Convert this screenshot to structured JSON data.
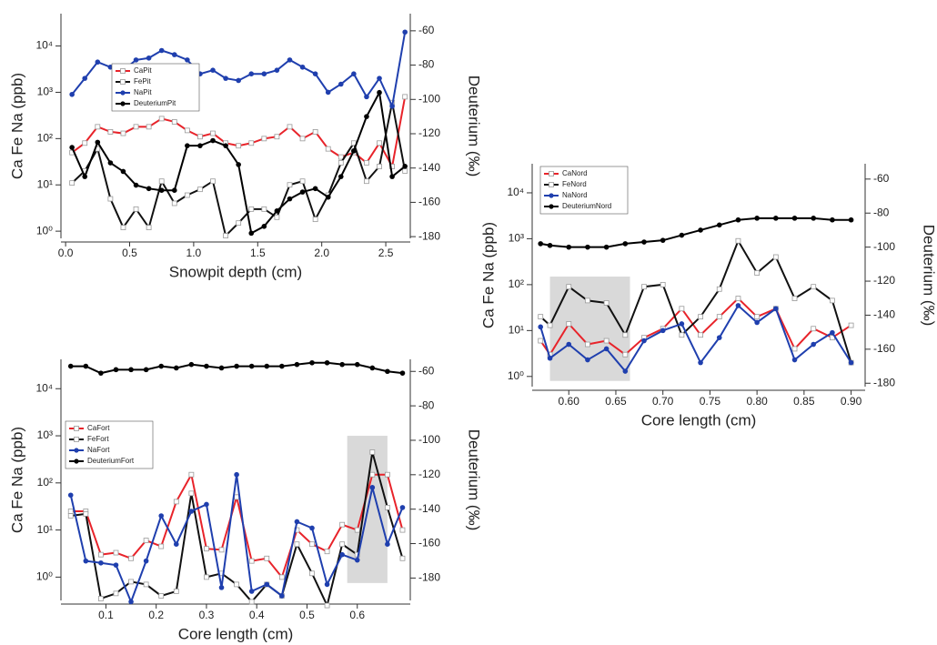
{
  "chart_data": [
    {
      "type": "line",
      "xlabel": "Snowpit depth (cm)",
      "ylabel": "Ca Fe Na (ppb)",
      "y2label": "Deuterium (‰)",
      "yscale": "log",
      "xlim": [
        -0.015,
        2.67
      ],
      "ylim": [
        0.7,
        50000
      ],
      "y2lim": [
        -181,
        -50
      ],
      "xticks": [
        {
          "value": 0,
          "label": "0.0"
        },
        0.5,
        {
          "value": 1,
          "label": "1.0"
        },
        1.5,
        {
          "value": 2,
          "label": "2.0"
        },
        2.5
      ],
      "yticks": [
        {
          "value": 1,
          "label": "10⁰"
        },
        {
          "value": 10,
          "label": "10¹"
        },
        {
          "value": 100,
          "label": "10²"
        },
        {
          "value": 1000,
          "label": "10³"
        },
        {
          "value": 10000,
          "label": "10⁴"
        }
      ],
      "y2ticks": [
        -60,
        -80,
        -100,
        -120,
        -140,
        -160,
        -180
      ],
      "x": [
        0.05,
        0.15,
        0.25,
        0.35,
        0.45,
        0.55,
        0.65,
        0.75,
        0.85,
        0.95,
        1.05,
        1.15,
        1.25,
        1.35,
        1.45,
        1.55,
        1.65,
        1.75,
        1.85,
        1.95,
        2.05,
        2.15,
        2.25,
        2.35,
        2.45,
        2.55,
        2.65
      ],
      "series": [
        {
          "name": "CaPit",
          "color": "#e8232a",
          "marker": "square",
          "values": [
            50,
            80,
            180,
            140,
            130,
            180,
            180,
            270,
            230,
            150,
            110,
            130,
            80,
            70,
            80,
            100,
            110,
            180,
            100,
            140,
            60,
            40,
            50,
            30,
            80,
            25,
            800
          ]
        },
        {
          "name": "FePit",
          "color": "#111111",
          "marker": "square",
          "values": [
            11,
            20,
            60,
            5,
            1.2,
            3,
            1.2,
            12,
            4,
            6,
            8,
            12,
            0.8,
            1.5,
            3,
            3,
            2,
            10,
            12,
            1.8,
            6,
            30,
            80,
            12,
            25,
            600,
            20
          ]
        },
        {
          "name": "NaPit",
          "color": "#1f3fae",
          "marker": "circle",
          "values": [
            900,
            2000,
            4500,
            3500,
            3000,
            5000,
            5500,
            8000,
            6500,
            5000,
            2500,
            3000,
            2000,
            1800,
            2500,
            2500,
            3000,
            5000,
            3500,
            2500,
            1000,
            1500,
            2500,
            800,
            2000,
            500,
            20000
          ]
        },
        {
          "name": "DeuteriumPit",
          "color": "#000000",
          "marker": "circle",
          "axis": "y2",
          "values": [
            -128,
            -145,
            -125,
            -137,
            -142,
            -150,
            -152,
            -153,
            -153,
            -127,
            -127,
            -124,
            -127,
            -138,
            -178,
            -174,
            -165,
            -158,
            -154,
            -152,
            -157,
            -145,
            -130,
            -110,
            -96,
            -145,
            -139
          ]
        }
      ]
    },
    {
      "type": "line",
      "xlabel": "Core length (cm)",
      "ylabel": "Ca Fe Na (ppb)",
      "y2label": "Deuterium (‰)",
      "yscale": "log",
      "xlim": [
        0.564,
        0.912
      ],
      "ylim": [
        0.6,
        43000
      ],
      "y2lim": [
        -182,
        -51
      ],
      "xticks": [
        {
          "value": 0.6,
          "label": "0.60"
        },
        0.65,
        {
          "value": 0.7,
          "label": "0.70"
        },
        0.75,
        {
          "value": 0.8,
          "label": "0.80"
        },
        0.85,
        {
          "value": 0.9,
          "label": "0.90"
        }
      ],
      "yticks": [
        {
          "value": 1,
          "label": "10⁰"
        },
        {
          "value": 10,
          "label": "10¹"
        },
        {
          "value": 100,
          "label": "10²"
        },
        {
          "value": 1000,
          "label": "10³"
        },
        {
          "value": 10000,
          "label": "10⁴"
        }
      ],
      "y2ticks": [
        -60,
        -80,
        -100,
        -120,
        -140,
        -160,
        -180
      ],
      "highlight": {
        "x": [
          0.58,
          0.665
        ],
        "y": [
          0.8,
          150
        ]
      },
      "x": [
        0.57,
        0.58,
        0.6,
        0.62,
        0.64,
        0.66,
        0.68,
        0.7,
        0.72,
        0.74,
        0.76,
        0.78,
        0.8,
        0.82,
        0.84,
        0.86,
        0.88,
        0.9
      ],
      "series": [
        {
          "name": "CaNord",
          "color": "#e8232a",
          "marker": "square",
          "values": [
            6,
            3,
            14,
            5,
            6,
            3,
            7,
            11,
            30,
            8,
            20,
            50,
            20,
            30,
            4,
            11,
            7,
            13
          ]
        },
        {
          "name": "FeNord",
          "color": "#111111",
          "marker": "square",
          "values": [
            20,
            13,
            90,
            45,
            40,
            8,
            90,
            100,
            8,
            20,
            80,
            900,
            180,
            400,
            50,
            90,
            45,
            2
          ]
        },
        {
          "name": "NaNord",
          "color": "#1f3fae",
          "marker": "circle",
          "values": [
            12,
            2.5,
            5,
            2.3,
            4,
            1.3,
            6,
            10,
            14,
            2,
            7,
            35,
            15,
            30,
            2.3,
            5,
            9,
            2
          ]
        },
        {
          "name": "DeuteriumNord",
          "color": "#000000",
          "marker": "circle",
          "axis": "y2",
          "values": [
            -98,
            -99,
            -100,
            -100,
            -100,
            -98,
            -97,
            -96,
            -93,
            -90,
            -87,
            -84,
            -83,
            -83,
            -83,
            -83,
            -84,
            -84
          ]
        }
      ]
    },
    {
      "type": "line",
      "xlabel": "Core length (cm)",
      "ylabel": "Ca Fe Na (ppb)",
      "y2label": "Deuterium (‰)",
      "yscale": "log",
      "xlim": [
        0.016,
        0.7
      ],
      "ylim": [
        0.32,
        42000
      ],
      "y2lim": [
        -193,
        -53
      ],
      "xticks": [
        0.1,
        0.2,
        0.3,
        0.4,
        0.5,
        0.6
      ],
      "yticks": [
        {
          "value": 1,
          "label": "10⁰"
        },
        {
          "value": 10,
          "label": "10¹"
        },
        {
          "value": 100,
          "label": "10²"
        },
        {
          "value": 1000,
          "label": "10³"
        },
        {
          "value": 10000,
          "label": "10⁴"
        }
      ],
      "y2ticks": [
        -60,
        -80,
        -100,
        -120,
        -140,
        -160,
        -180
      ],
      "highlight": {
        "x": [
          0.58,
          0.66
        ],
        "y": [
          0.75,
          1000
        ]
      },
      "x": [
        0.03,
        0.06,
        0.09,
        0.12,
        0.15,
        0.18,
        0.21,
        0.24,
        0.27,
        0.3,
        0.33,
        0.36,
        0.39,
        0.42,
        0.45,
        0.48,
        0.51,
        0.54,
        0.57,
        0.6,
        0.63,
        0.66,
        0.69
      ],
      "series": [
        {
          "name": "CaFort",
          "color": "#e8232a",
          "marker": "square",
          "values": [
            25,
            25,
            3,
            3.3,
            2.5,
            6,
            4.5,
            40,
            150,
            4,
            3.8,
            50,
            2.2,
            2.5,
            1,
            10,
            5,
            3.5,
            13,
            10,
            150,
            150,
            10
          ]
        },
        {
          "name": "FeFort",
          "color": "#111111",
          "marker": "square",
          "values": [
            20,
            22,
            0.35,
            0.45,
            0.8,
            0.7,
            0.4,
            0.5,
            60,
            1,
            1.2,
            0.7,
            0.3,
            0.7,
            0.4,
            5,
            1.2,
            0.25,
            5,
            3,
            450,
            30,
            2.5
          ]
        },
        {
          "name": "NaFort",
          "color": "#1f3fae",
          "marker": "circle",
          "values": [
            55,
            2.2,
            2,
            1.8,
            0.3,
            2.2,
            20,
            5,
            25,
            35,
            0.6,
            150,
            0.5,
            0.7,
            0.4,
            15,
            11,
            0.7,
            3,
            2.3,
            80,
            5,
            30
          ]
        },
        {
          "name": "DeuteriumFort",
          "color": "#000000",
          "marker": "circle",
          "axis": "y2",
          "values": [
            -57,
            -57,
            -61,
            -59,
            -59,
            -59,
            -57,
            -58,
            -56,
            -57,
            -58,
            -57,
            -57,
            -57,
            -57,
            -56,
            -55,
            -55,
            -56,
            -56,
            -58,
            -60,
            -61
          ]
        }
      ]
    }
  ]
}
